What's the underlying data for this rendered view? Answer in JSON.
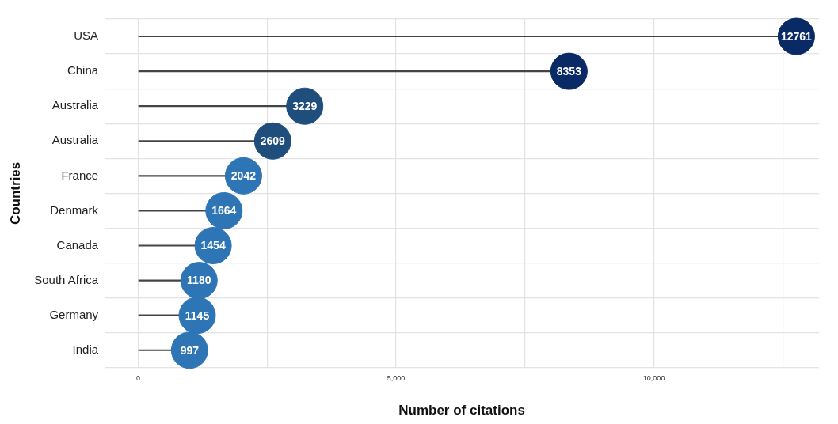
{
  "chart_data": {
    "type": "lollipop",
    "orientation": "horizontal",
    "xlabel": "Number of citations",
    "ylabel": "Countries",
    "categories": [
      "USA",
      "China",
      "Australia",
      "Australia",
      "France",
      "Denmark",
      "Canada",
      "South Africa",
      "Germany",
      "India"
    ],
    "values": [
      12761,
      8353,
      3229,
      2609,
      2042,
      1664,
      1454,
      1180,
      1145,
      997
    ],
    "colors": [
      "#0a2a66",
      "#0a2a66",
      "#1f4e7d",
      "#1f4e7d",
      "#2e75b6",
      "#2e75b6",
      "#2e75b6",
      "#2e75b6",
      "#2e75b6",
      "#2e75b6"
    ],
    "xlim": [
      -650,
      13200
    ],
    "xticks": [
      {
        "value": 0,
        "label": "0"
      },
      {
        "value": 2500,
        "label": null
      },
      {
        "value": 5000,
        "label": "5,000"
      },
      {
        "value": 7500,
        "label": null
      },
      {
        "value": 10000,
        "label": "10,000"
      },
      {
        "value": 12500,
        "label": null
      }
    ],
    "grid": true,
    "data_labels": true,
    "marker": "circle"
  }
}
